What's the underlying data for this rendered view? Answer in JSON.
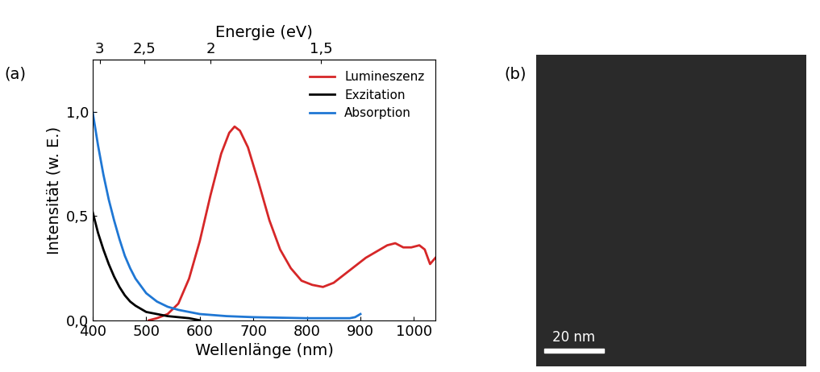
{
  "chart_data": {
    "type": "line",
    "panel_label": "(a)",
    "x_label": "Wellenlänge (nm)",
    "y_label": "Intensität (w. E.)",
    "x2_label": "Energie (eV)",
    "xlim": [
      400,
      1040
    ],
    "xticks": [
      400,
      500,
      600,
      700,
      800,
      900,
      1000
    ],
    "ylim": [
      0,
      1.25
    ],
    "yticks": [
      {
        "value": 0.0,
        "label": "0,0"
      },
      {
        "value": 0.5,
        "label": "0,5"
      },
      {
        "value": 1.0,
        "label": "1,0"
      }
    ],
    "x2ticks": [
      3,
      {
        "value": 2.5,
        "label": "2,5"
      },
      2,
      {
        "value": 1.5,
        "label": "1,5"
      }
    ],
    "legend": "upper right",
    "grid": false,
    "series": [
      {
        "name": "Lumineszenz",
        "color": "#d62728",
        "line_style": "solid",
        "x": [
          505,
          520,
          540,
          560,
          580,
          600,
          620,
          640,
          655,
          665,
          675,
          690,
          710,
          730,
          750,
          770,
          790,
          810,
          830,
          850,
          870,
          890,
          910,
          930,
          950,
          965,
          980,
          995,
          1010,
          1020,
          1030,
          1040
        ],
        "values": [
          0.0,
          0.01,
          0.03,
          0.08,
          0.2,
          0.38,
          0.6,
          0.8,
          0.9,
          0.93,
          0.91,
          0.83,
          0.66,
          0.48,
          0.34,
          0.25,
          0.19,
          0.17,
          0.16,
          0.18,
          0.22,
          0.26,
          0.3,
          0.33,
          0.36,
          0.37,
          0.35,
          0.35,
          0.36,
          0.34,
          0.27,
          0.3
        ]
      },
      {
        "name": "Exzitation",
        "color": "#000000",
        "line_style": "solid",
        "x": [
          400,
          410,
          420,
          430,
          440,
          450,
          460,
          470,
          480,
          500,
          520,
          540,
          560,
          580,
          600
        ],
        "values": [
          0.52,
          0.42,
          0.34,
          0.27,
          0.21,
          0.16,
          0.12,
          0.09,
          0.07,
          0.04,
          0.03,
          0.02,
          0.015,
          0.01,
          0.0
        ]
      },
      {
        "name": "Absorption",
        "color": "#1f77d4",
        "line_style": "solid",
        "x": [
          400,
          410,
          420,
          430,
          440,
          450,
          460,
          470,
          480,
          500,
          520,
          540,
          560,
          600,
          650,
          700,
          800,
          880,
          890,
          900
        ],
        "values": [
          1.0,
          0.84,
          0.7,
          0.58,
          0.48,
          0.39,
          0.31,
          0.25,
          0.2,
          0.13,
          0.09,
          0.065,
          0.05,
          0.03,
          0.02,
          0.015,
          0.01,
          0.01,
          0.015,
          0.03
        ]
      }
    ]
  },
  "image": {
    "panel_label": "(b)",
    "scale_bar_label": "20 nm"
  }
}
